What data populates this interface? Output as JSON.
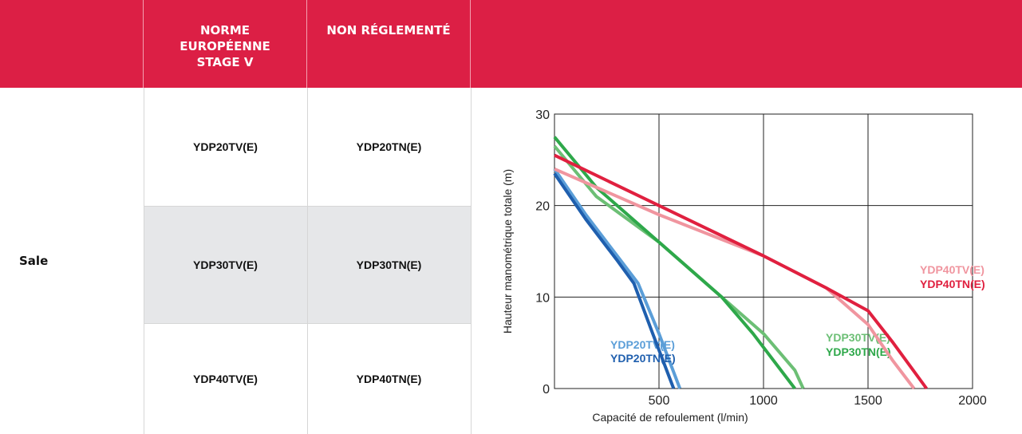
{
  "table": {
    "header": [
      "NORME EUROPÉENNE STAGE V",
      "NON RÉGLEMENTÉ"
    ],
    "row_label": "Sale",
    "rows": [
      [
        "YDP20TV(E)",
        "YDP20TN(E)"
      ],
      [
        "YDP30TV(E)",
        "YDP30TN(E)"
      ],
      [
        "YDP40TV(E)",
        "YDP40TN(E)"
      ]
    ]
  },
  "chart_data": {
    "type": "line",
    "xlabel": "Capacité de refoulement (l/min)",
    "ylabel": "Hauteur manométrique totale (m)",
    "xlim": [
      0,
      2000
    ],
    "ylim": [
      0,
      30
    ],
    "xticks": [
      500,
      1000,
      1500,
      2000
    ],
    "yticks": [
      0,
      10,
      20,
      30
    ],
    "grid": true,
    "series": [
      {
        "name": "YDP20TV(E)",
        "color": "#5b9ed8",
        "x": [
          0,
          150,
          300,
          400,
          500,
          600
        ],
        "values": [
          24,
          19,
          14.5,
          11.5,
          6,
          0
        ]
      },
      {
        "name": "YDP20TN(E)",
        "color": "#1f5fae",
        "x": [
          0,
          150,
          300,
          380,
          470,
          570
        ],
        "values": [
          23.5,
          18.5,
          14,
          11.5,
          6,
          0
        ]
      },
      {
        "name": "YDP30TV(E)",
        "color": "#6cbf75",
        "x": [
          0,
          200,
          500,
          800,
          1000,
          1150,
          1190
        ],
        "values": [
          26.5,
          21,
          16,
          10,
          6,
          2,
          0
        ]
      },
      {
        "name": "YDP30TN(E)",
        "color": "#2ea84a",
        "x": [
          0,
          200,
          500,
          800,
          950,
          1150
        ],
        "values": [
          27.5,
          22,
          16,
          10,
          6,
          0
        ]
      },
      {
        "name": "YDP40TV(E)",
        "color": "#f0959f",
        "x": [
          0,
          500,
          1000,
          1300,
          1500,
          1620,
          1720
        ],
        "values": [
          24,
          19,
          14.5,
          11,
          7,
          3,
          0
        ]
      },
      {
        "name": "YDP40TN(E)",
        "color": "#e0203f",
        "x": [
          0,
          500,
          1000,
          1300,
          1500,
          1620,
          1780
        ],
        "values": [
          25.5,
          20,
          14.5,
          11,
          8.5,
          5,
          0
        ]
      }
    ]
  }
}
